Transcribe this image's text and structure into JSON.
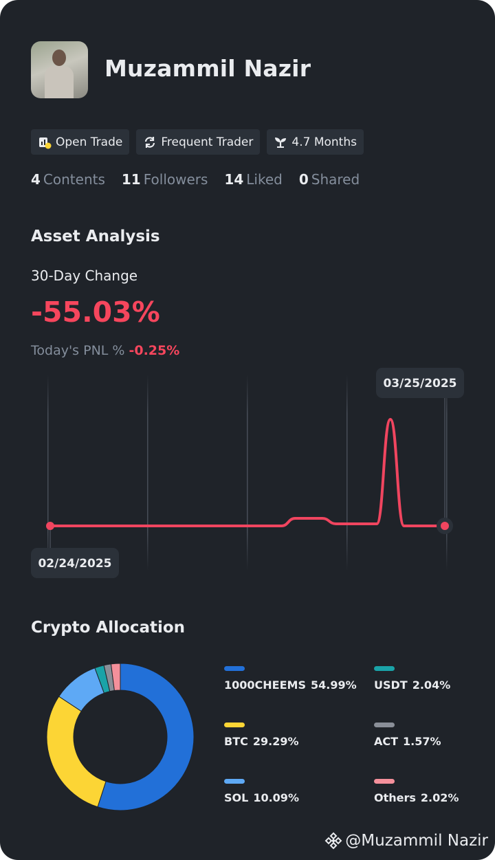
{
  "profile": {
    "name": "Muzammil Nazir",
    "badges": [
      "Open Trade",
      "Frequent Trader",
      "4.7 Months"
    ],
    "stats": [
      {
        "count": 4,
        "label": "Contents"
      },
      {
        "count": 11,
        "label": "Followers"
      },
      {
        "count": 14,
        "label": "Liked"
      },
      {
        "count": 0,
        "label": "Shared"
      }
    ]
  },
  "asset_analysis": {
    "title": "Asset Analysis",
    "change_label": "30-Day Change",
    "change": "-55.03%",
    "pnl_label": "Today's PNL %",
    "pnl": "-0.25%"
  },
  "chart_data": [
    {
      "type": "line",
      "x": [
        "02/24/2025",
        null,
        null,
        null,
        null,
        null,
        null,
        null,
        null,
        null,
        null,
        null,
        null,
        null,
        null,
        null,
        null,
        null,
        null,
        null,
        null,
        null,
        null,
        null,
        null,
        null,
        null,
        null,
        null,
        "03/25/2025"
      ],
      "values": [
        0,
        0,
        0,
        0,
        0,
        0,
        0,
        0,
        0,
        0,
        0,
        0,
        0,
        0,
        0,
        0,
        0,
        0,
        11,
        11,
        11,
        3,
        3,
        3,
        3,
        155,
        0,
        0,
        0,
        0
      ],
      "ylim": [
        -65,
        205
      ],
      "color": "#f0455f"
    },
    {
      "type": "pie",
      "title": "Crypto Allocation",
      "categories": [
        "1000CHEEMS",
        "BTC",
        "SOL",
        "USDT",
        "ACT",
        "Others"
      ],
      "values": [
        54.99,
        29.29,
        10.09,
        2.04,
        1.57,
        2.02
      ],
      "value_labels": [
        "54.99%",
        "29.29%",
        "10.09%",
        "2.04%",
        "1.57%",
        "2.02%"
      ],
      "colors": [
        "#2270d8",
        "#fcd535",
        "#5ea9f5",
        "#1aa3a8",
        "#8a8f98",
        "#f4909b"
      ]
    }
  ],
  "footer": {
    "handle": "@Muzammil Nazir"
  }
}
